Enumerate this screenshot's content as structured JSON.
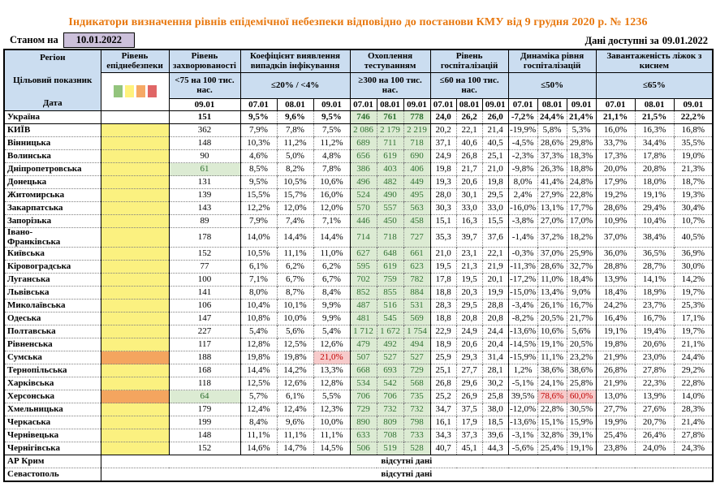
{
  "title": "Індикатори визначення рівнів епідемічної небезпеки відповідно до постанови КМУ від 9 грудня 2020 р. № 1236",
  "meta": {
    "as_of_label": "Станом на",
    "as_of_value": "10.01.2022",
    "available_label": "Дані доступні за",
    "available_value": "09.01.2022"
  },
  "colors": {
    "title": "#E8780F",
    "header_bg": "#CBDDF0",
    "as_of_bg": "#CCC0DA",
    "epid_yellow": "#FBF180",
    "epid_orange": "#F4A55F",
    "good_bg": "#DCEBD3",
    "good_text": "#2F7031",
    "bad_bg": "#F7CBCB",
    "bad_text": "#C00000",
    "legend": [
      "#93C47D",
      "#FFF27D",
      "#F6A965",
      "#E06666"
    ]
  },
  "header": {
    "region_label": "Регіон",
    "target_label": "Цільовий показник",
    "date_label": "Дата",
    "groups": [
      {
        "label": "Рівень епіднебезпеки",
        "cols": 1,
        "target": "",
        "legend": true,
        "dates": []
      },
      {
        "label": "Рівень захворюваності",
        "cols": 1,
        "target": "<75 на 100 тис. нас.",
        "dates": [
          "09.01"
        ]
      },
      {
        "label": "Коефіцієнт виявлення випадків інфікування",
        "cols": 3,
        "target": "≤20% / <4%",
        "dates": [
          "07.01",
          "08.01",
          "09.01"
        ]
      },
      {
        "label": "Охоплення тестуванням",
        "cols": 3,
        "target": "≥300 на 100 тис. нас.",
        "dates": [
          "07.01",
          "08.01",
          "09.01"
        ]
      },
      {
        "label": "Рівень госпіталізацій",
        "cols": 3,
        "target": "≤60 на 100 тис. нас.",
        "dates": [
          "07.01",
          "08.01",
          "09.01"
        ]
      },
      {
        "label": "Динаміка рівня госпіталізацій",
        "cols": 3,
        "target": "≤50%",
        "dates": [
          "07.01",
          "08.01",
          "09.01"
        ]
      },
      {
        "label": "Завантаженість ліжок з киснем",
        "cols": 3,
        "target": "≤65%",
        "dates": [
          "07.01",
          "08.01",
          "09.01"
        ]
      }
    ]
  },
  "rows": [
    {
      "region": "Україна",
      "bold": true,
      "epid": null,
      "values": [
        "151",
        "9,5%",
        "9,6%",
        "9,5%",
        "746",
        "761",
        "778",
        "24,0",
        "26,2",
        "26,0",
        "-7,2%",
        "24,4%",
        "21,4%",
        "21,1%",
        "21,5%",
        "22,2%"
      ]
    },
    {
      "region": "КИЇВ",
      "epid": "yellow",
      "values": [
        "362",
        "7,9%",
        "7,8%",
        "7,5%",
        "2 086",
        "2 179",
        "2 219",
        "20,2",
        "22,1",
        "21,4",
        "-19,9%",
        "5,8%",
        "5,3%",
        "16,0%",
        "16,3%",
        "16,8%"
      ]
    },
    {
      "region": "Вінницька",
      "epid": "yellow",
      "values": [
        "148",
        "10,3%",
        "11,2%",
        "11,2%",
        "689",
        "711",
        "718",
        "37,1",
        "40,6",
        "40,5",
        "-4,5%",
        "28,6%",
        "29,8%",
        "33,7%",
        "34,4%",
        "35,5%"
      ]
    },
    {
      "region": "Волинська",
      "epid": "yellow",
      "values": [
        "90",
        "4,6%",
        "5,0%",
        "4,8%",
        "656",
        "619",
        "690",
        "24,9",
        "26,8",
        "25,1",
        "-2,3%",
        "37,3%",
        "18,3%",
        "17,3%",
        "17,8%",
        "19,0%"
      ]
    },
    {
      "region": "Дніпропетровська",
      "epid": "yellow",
      "marks": {
        "0": "good"
      },
      "values": [
        "61",
        "8,5%",
        "8,2%",
        "7,8%",
        "386",
        "403",
        "406",
        "19,8",
        "21,7",
        "21,0",
        "-9,8%",
        "26,3%",
        "18,8%",
        "20,0%",
        "20,8%",
        "21,3%"
      ]
    },
    {
      "region": "Донецька",
      "epid": "yellow",
      "values": [
        "131",
        "9,5%",
        "10,5%",
        "10,6%",
        "496",
        "482",
        "449",
        "19,3",
        "20,6",
        "19,8",
        "8,0%",
        "41,4%",
        "24,8%",
        "17,9%",
        "18,0%",
        "18,7%"
      ]
    },
    {
      "region": "Житомирська",
      "epid": "yellow",
      "values": [
        "139",
        "15,5%",
        "15,7%",
        "16,0%",
        "524",
        "490",
        "495",
        "28,0",
        "30,1",
        "29,5",
        "2,4%",
        "27,9%",
        "22,8%",
        "19,2%",
        "19,1%",
        "19,3%"
      ]
    },
    {
      "region": "Закарпатська",
      "epid": "yellow",
      "values": [
        "143",
        "12,2%",
        "12,0%",
        "12,0%",
        "570",
        "557",
        "563",
        "30,3",
        "33,0",
        "33,0",
        "-16,0%",
        "13,1%",
        "17,7%",
        "28,6%",
        "29,4%",
        "30,4%"
      ]
    },
    {
      "region": "Запорізька",
      "epid": "yellow",
      "values": [
        "89",
        "7,9%",
        "7,4%",
        "7,1%",
        "446",
        "450",
        "458",
        "15,1",
        "16,3",
        "15,5",
        "-3,8%",
        "27,0%",
        "17,0%",
        "10,9%",
        "10,4%",
        "10,7%"
      ]
    },
    {
      "region": "Івано-\nФранківська",
      "epid": "yellow",
      "values": [
        "178",
        "14,0%",
        "14,4%",
        "14,4%",
        "714",
        "718",
        "727",
        "35,3",
        "39,7",
        "37,6",
        "-1,4%",
        "37,2%",
        "18,2%",
        "37,0%",
        "38,4%",
        "40,5%"
      ]
    },
    {
      "region": "Київська",
      "epid": "yellow",
      "values": [
        "152",
        "10,5%",
        "11,1%",
        "11,0%",
        "627",
        "648",
        "661",
        "21,0",
        "23,1",
        "22,1",
        "-0,3%",
        "37,0%",
        "25,9%",
        "36,0%",
        "36,5%",
        "36,9%"
      ]
    },
    {
      "region": "Кіровоградська",
      "epid": "yellow",
      "values": [
        "77",
        "6,1%",
        "6,2%",
        "6,2%",
        "595",
        "619",
        "623",
        "19,5",
        "21,3",
        "21,9",
        "-11,3%",
        "28,6%",
        "32,7%",
        "28,8%",
        "28,7%",
        "30,0%"
      ]
    },
    {
      "region": "Луганська",
      "epid": "yellow",
      "values": [
        "100",
        "7,1%",
        "6,7%",
        "6,7%",
        "702",
        "759",
        "782",
        "17,8",
        "19,5",
        "20,1",
        "-17,2%",
        "11,0%",
        "18,4%",
        "13,9%",
        "14,1%",
        "14,2%"
      ]
    },
    {
      "region": "Львівська",
      "epid": "yellow",
      "values": [
        "141",
        "8,0%",
        "8,7%",
        "8,4%",
        "852",
        "855",
        "884",
        "18,8",
        "20,3",
        "19,9",
        "-15,0%",
        "13,4%",
        "9,0%",
        "18,4%",
        "18,9%",
        "19,7%"
      ]
    },
    {
      "region": "Миколаївська",
      "epid": "yellow",
      "values": [
        "106",
        "10,4%",
        "10,1%",
        "9,9%",
        "487",
        "516",
        "531",
        "28,3",
        "29,5",
        "28,8",
        "-3,4%",
        "26,1%",
        "16,7%",
        "24,2%",
        "23,7%",
        "25,3%"
      ]
    },
    {
      "region": "Одеська",
      "epid": "yellow",
      "values": [
        "147",
        "10,8%",
        "10,0%",
        "9,9%",
        "481",
        "545",
        "569",
        "18,8",
        "20,8",
        "20,8",
        "-8,2%",
        "20,5%",
        "21,7%",
        "16,4%",
        "16,7%",
        "17,1%"
      ]
    },
    {
      "region": "Полтавська",
      "epid": "yellow",
      "values": [
        "227",
        "5,4%",
        "5,6%",
        "5,4%",
        "1 712",
        "1 672",
        "1 754",
        "22,9",
        "24,9",
        "24,4",
        "-13,6%",
        "10,6%",
        "5,6%",
        "19,1%",
        "19,4%",
        "19,7%"
      ]
    },
    {
      "region": "Рівненська",
      "epid": "yellow",
      "values": [
        "117",
        "12,8%",
        "12,5%",
        "12,6%",
        "479",
        "492",
        "494",
        "18,9",
        "20,6",
        "20,4",
        "-14,5%",
        "19,1%",
        "20,5%",
        "19,8%",
        "20,6%",
        "21,1%"
      ]
    },
    {
      "region": "Сумська",
      "epid": "orange",
      "marks": {
        "3": "bad"
      },
      "values": [
        "188",
        "19,8%",
        "19,8%",
        "21,0%",
        "507",
        "527",
        "527",
        "25,9",
        "29,3",
        "31,4",
        "-15,9%",
        "11,1%",
        "23,2%",
        "21,9%",
        "23,0%",
        "24,4%"
      ]
    },
    {
      "region": "Тернопільська",
      "epid": "yellow",
      "values": [
        "168",
        "14,4%",
        "14,2%",
        "13,3%",
        "668",
        "693",
        "729",
        "25,1",
        "27,7",
        "28,1",
        "1,2%",
        "38,6%",
        "38,6%",
        "26,8%",
        "27,8%",
        "29,2%"
      ]
    },
    {
      "region": "Харківська",
      "epid": "yellow",
      "values": [
        "118",
        "12,5%",
        "12,6%",
        "12,8%",
        "534",
        "542",
        "568",
        "26,8",
        "29,6",
        "30,2",
        "-5,1%",
        "24,1%",
        "25,8%",
        "21,9%",
        "22,3%",
        "22,8%"
      ]
    },
    {
      "region": "Херсонська",
      "epid": "orange",
      "marks": {
        "0": "good",
        "11": "bad",
        "12": "bad"
      },
      "values": [
        "64",
        "5,7%",
        "6,1%",
        "5,5%",
        "706",
        "706",
        "735",
        "25,2",
        "26,9",
        "25,8",
        "39,5%",
        "78,6%",
        "60,0%",
        "13,0%",
        "13,9%",
        "14,0%"
      ]
    },
    {
      "region": "Хмельницька",
      "epid": "yellow",
      "values": [
        "179",
        "12,4%",
        "12,4%",
        "12,3%",
        "729",
        "732",
        "732",
        "34,7",
        "37,5",
        "38,0",
        "-12,0%",
        "22,8%",
        "30,5%",
        "27,7%",
        "27,6%",
        "28,3%"
      ]
    },
    {
      "region": "Черкаська",
      "epid": "yellow",
      "values": [
        "199",
        "8,4%",
        "9,6%",
        "10,0%",
        "890",
        "809",
        "798",
        "16,1",
        "17,9",
        "18,5",
        "-13,6%",
        "15,1%",
        "15,9%",
        "19,9%",
        "20,7%",
        "21,4%"
      ]
    },
    {
      "region": "Чернівецька",
      "epid": "yellow",
      "values": [
        "148",
        "11,1%",
        "11,1%",
        "11,1%",
        "633",
        "708",
        "733",
        "34,3",
        "37,3",
        "39,6",
        "-3,1%",
        "32,8%",
        "39,1%",
        "25,4%",
        "26,4%",
        "27,8%"
      ]
    },
    {
      "region": "Чернігівська",
      "epid": "yellow",
      "values": [
        "152",
        "14,6%",
        "14,7%",
        "14,5%",
        "506",
        "519",
        "528",
        "40,7",
        "45,1",
        "44,3",
        "-5,6%",
        "25,4%",
        "19,1%",
        "23,8%",
        "24,0%",
        "24,3%"
      ]
    },
    {
      "region": "АР Крим",
      "nodata": "відсутні дані"
    },
    {
      "region": "Севастополь",
      "nodata": "відсутні дані"
    }
  ]
}
